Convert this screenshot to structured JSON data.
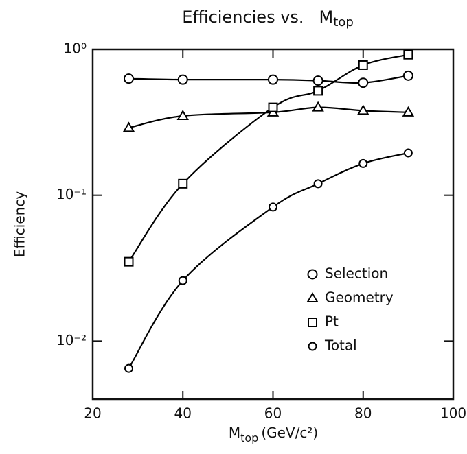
{
  "chart_data": {
    "type": "line",
    "title": {
      "text": "Efficiencies  vs.",
      "symbol": "M",
      "subscript": "top"
    },
    "xlabel": {
      "symbol": "M",
      "subscript": "top",
      "unit": "(GeV/c²)"
    },
    "ylabel": "Efficiency",
    "x": [
      28,
      40,
      60,
      70,
      80,
      90
    ],
    "series": [
      {
        "name": "Selection",
        "color": "#000000",
        "marker": "circle",
        "values": [
          0.63,
          0.62,
          0.62,
          0.61,
          0.59,
          0.66
        ]
      },
      {
        "name": "Geometry",
        "color": "#000000",
        "marker": "triangle",
        "values": [
          0.29,
          0.35,
          0.37,
          0.4,
          0.38,
          0.37
        ]
      },
      {
        "name": "Pt",
        "color": "#000000",
        "marker": "square",
        "values": [
          0.035,
          0.12,
          0.4,
          0.52,
          0.78,
          0.92
        ]
      },
      {
        "name": "Total",
        "color": "#000000",
        "marker": "small-circle",
        "values": [
          0.0065,
          0.026,
          0.083,
          0.12,
          0.165,
          0.195
        ]
      }
    ],
    "xlim": [
      20,
      100
    ],
    "xticks": [
      20,
      40,
      60,
      80,
      100
    ],
    "ylim": [
      0.004,
      1
    ],
    "ylog": true,
    "yticks": [
      {
        "value": 0.01,
        "label": "10⁻²"
      },
      {
        "value": 0.1,
        "label": "10⁻¹"
      },
      {
        "value": 1,
        "label": "10⁰"
      }
    ],
    "legend": "lower right"
  }
}
